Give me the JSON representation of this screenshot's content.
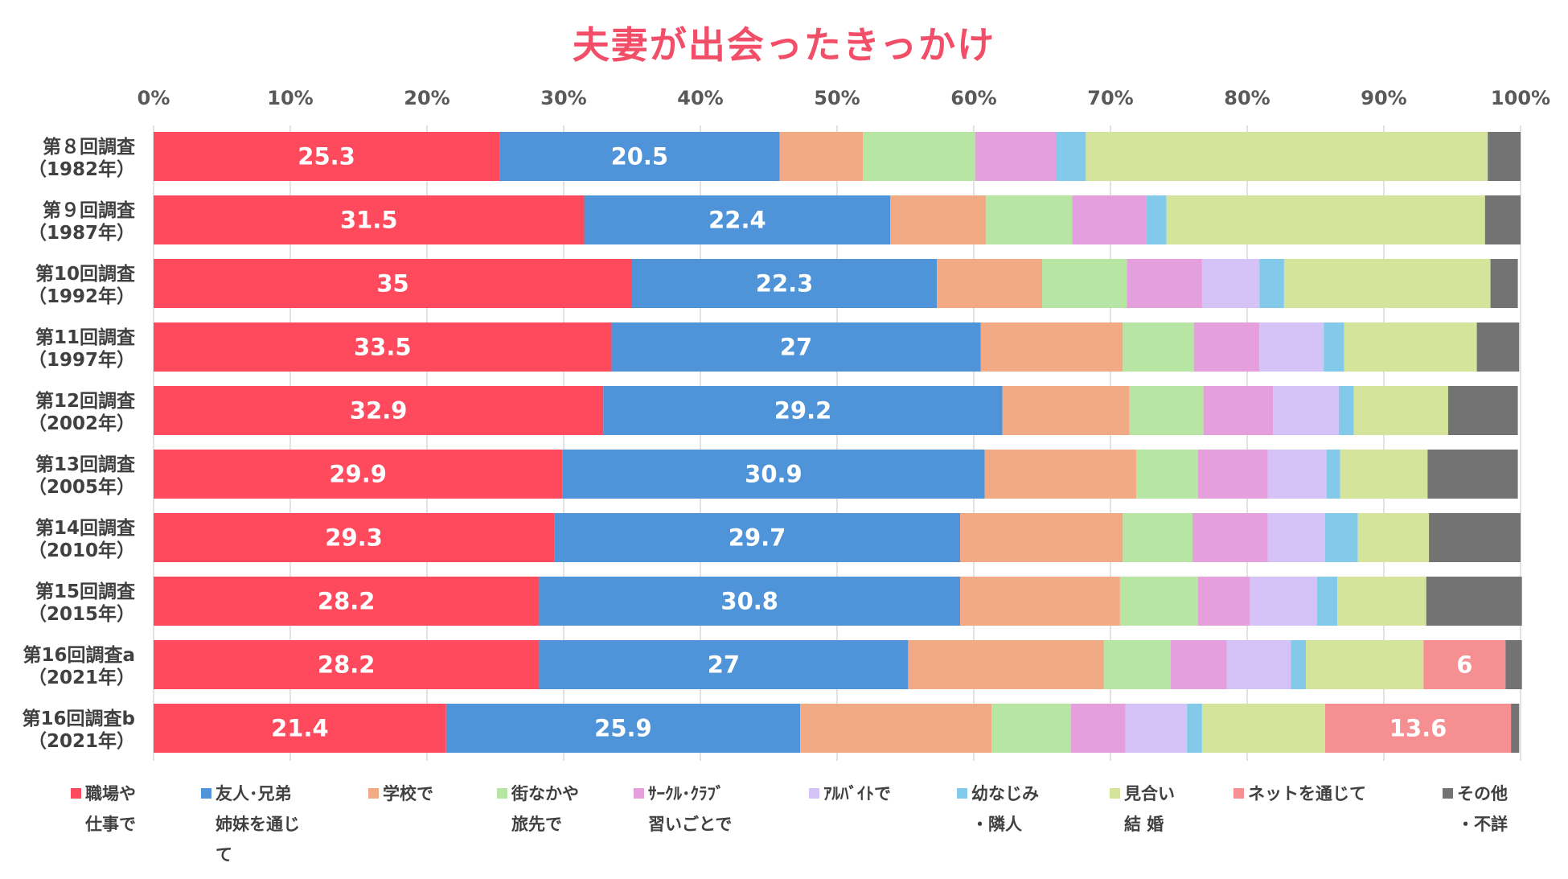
{
  "chart_data": {
    "type": "bar",
    "orientation": "horizontal",
    "stacked": "percent",
    "title": "夫妻が出会ったきっかけ",
    "xlabel": "",
    "ylabel": "",
    "xlim": [
      0,
      100
    ],
    "x_ticks": [
      "0%",
      "10%",
      "20%",
      "30%",
      "40%",
      "50%",
      "60%",
      "70%",
      "80%",
      "90%",
      "100%"
    ],
    "grid": true,
    "legend_position": "bottom",
    "categories": [
      {
        "line1": "第８回調査",
        "line2": "（1982年）"
      },
      {
        "line1": "第９回調査",
        "line2": "（1987年）"
      },
      {
        "line1": "第10回調査",
        "line2": "（1992年）"
      },
      {
        "line1": "第11回調査",
        "line2": "（1997年）"
      },
      {
        "line1": "第12回調査",
        "line2": "（2002年）"
      },
      {
        "line1": "第13回調査",
        "line2": "（2005年）"
      },
      {
        "line1": "第14回調査",
        "line2": "（2010年）"
      },
      {
        "line1": "第15回調査",
        "line2": "（2015年）"
      },
      {
        "line1": "第16回調査a",
        "line2": "（2021年）"
      },
      {
        "line1": "第16回調査b",
        "line2": "（2021年）"
      }
    ],
    "series": [
      {
        "name": "職場や仕事で",
        "legend_lines": [
          "職場や",
          "仕事で"
        ],
        "color": "#ff4a5e",
        "labeled": true,
        "values": [
          25.3,
          31.5,
          35,
          33.5,
          32.9,
          29.9,
          29.3,
          28.2,
          28.2,
          21.4
        ]
      },
      {
        "name": "友人・兄弟姉妹を通じて",
        "legend_lines": [
          "友人･兄弟",
          "姉妹を通じ",
          "て"
        ],
        "color": "#4f94d8",
        "labeled": true,
        "values": [
          20.5,
          22.4,
          22.3,
          27,
          29.2,
          30.9,
          29.7,
          30.8,
          27,
          25.9
        ]
      },
      {
        "name": "学校で",
        "legend_lines": [
          "学校で"
        ],
        "color": "#f2aa85",
        "labeled": false,
        "values": [
          6.1,
          7.0,
          7.7,
          10.4,
          9.3,
          11.1,
          11.9,
          11.7,
          14.3,
          14.0
        ]
      },
      {
        "name": "街なかや旅先で",
        "legend_lines": [
          "街なかや",
          "旅先で"
        ],
        "color": "#b7e5a3",
        "labeled": false,
        "values": [
          8.2,
          6.3,
          6.2,
          5.2,
          5.4,
          4.5,
          5.1,
          5.7,
          4.9,
          5.8
        ]
      },
      {
        "name": "サークル・クラブ習いごとで",
        "legend_lines": [
          "ｻｰｸﾙ･ｸﾗﾌﾞ",
          "習いごとで"
        ],
        "color": "#e59fdc",
        "labeled": false,
        "values": [
          5.9,
          5.4,
          5.5,
          4.8,
          5.1,
          5.1,
          5.5,
          3.8,
          4.1,
          4.0
        ]
      },
      {
        "name": "アルバイトで",
        "legend_lines": [
          "ｱﾙﾊﾞｲﾄで"
        ],
        "color": "#d5c3f7",
        "labeled": false,
        "values": [
          0,
          0,
          4.2,
          4.7,
          4.8,
          4.3,
          4.2,
          4.9,
          4.7,
          4.5
        ]
      },
      {
        "name": "幼なじみ・隣人",
        "legend_lines": [
          "幼なじみ",
          "・隣人"
        ],
        "color": "#82c9ea",
        "labeled": false,
        "values": [
          2.2,
          1.5,
          1.8,
          1.5,
          1.1,
          1.0,
          2.4,
          1.5,
          1.1,
          1.1
        ]
      },
      {
        "name": "見合い結婚",
        "legend_lines": [
          "見合い",
          "結 婚"
        ],
        "color": "#d4e59b",
        "labeled": false,
        "values": [
          29.4,
          23.3,
          15.1,
          9.7,
          6.9,
          6.4,
          5.2,
          6.5,
          8.6,
          9.0
        ]
      },
      {
        "name": "ネットを通じて",
        "legend_lines": [
          "ネットを通じて"
        ],
        "color": "#f68f91",
        "labeled": true,
        "values": [
          0,
          0,
          0,
          0,
          0,
          0,
          0,
          0,
          6,
          13.6
        ]
      },
      {
        "name": "その他・不詳",
        "legend_lines": [
          "その他",
          "・不詳"
        ],
        "color": "#737373",
        "labeled": false,
        "values": [
          2.4,
          2.6,
          2.0,
          3.1,
          5.1,
          6.6,
          6.7,
          7.0,
          1.2,
          0.6
        ]
      }
    ]
  }
}
